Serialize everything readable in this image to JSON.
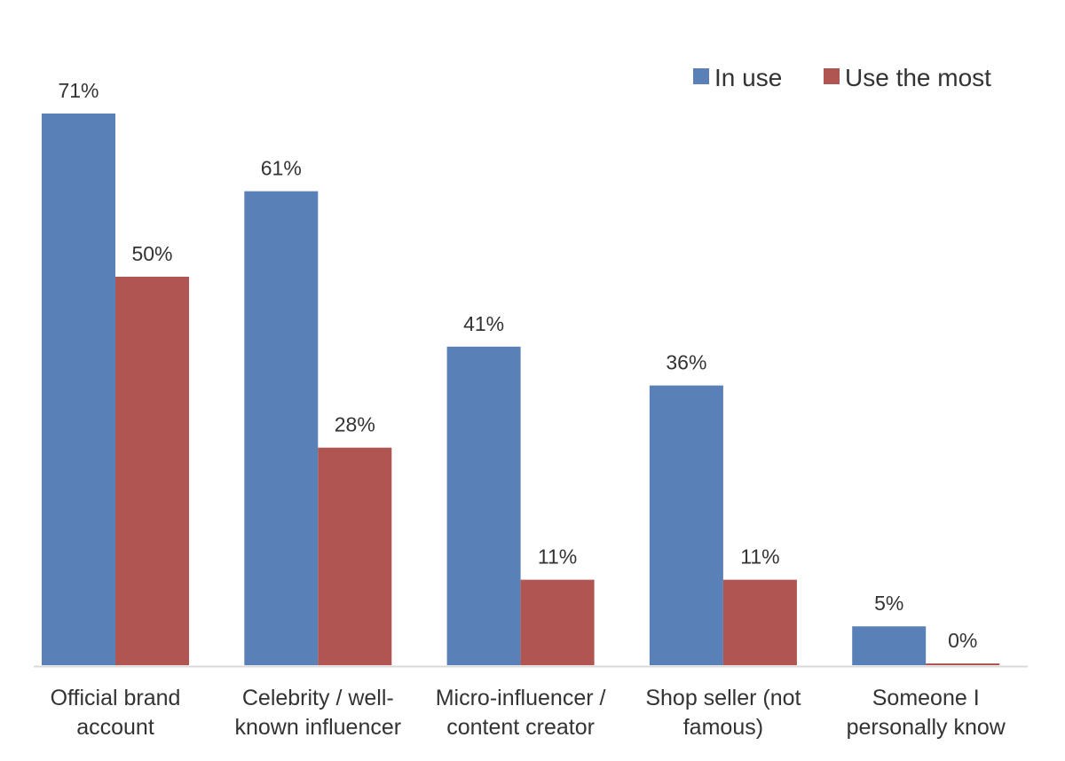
{
  "chart_data": {
    "type": "bar",
    "title": "",
    "xlabel": "",
    "ylabel": "",
    "ylim": [
      0,
      71
    ],
    "grid": false,
    "legend_position": "top-right",
    "categories": [
      [
        "Official brand",
        "account"
      ],
      [
        "Celebrity / well-",
        "known influencer"
      ],
      [
        "Micro-influencer /",
        "content creator"
      ],
      [
        "Shop seller (not",
        "famous)"
      ],
      [
        "Someone I",
        "personally know"
      ]
    ],
    "series": [
      {
        "name": "In use",
        "color": "#5a80b8",
        "values": [
          71,
          61,
          41,
          36,
          5
        ],
        "labels": [
          "71%",
          "61%",
          "41%",
          "36%",
          "5%"
        ]
      },
      {
        "name": "Use the most",
        "color": "#b05551",
        "values": [
          50,
          28,
          11,
          11,
          0
        ],
        "labels": [
          "50%",
          "28%",
          "11%",
          "11%",
          "0%"
        ]
      }
    ]
  }
}
